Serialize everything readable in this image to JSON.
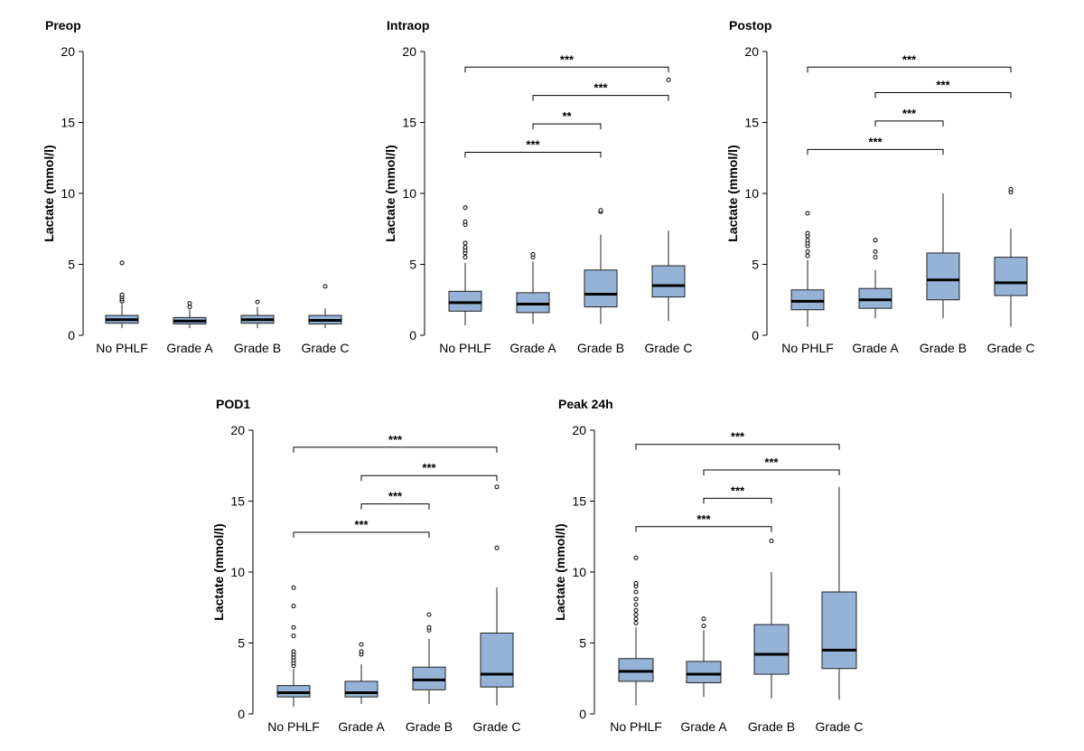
{
  "figure": {
    "y_axis_label": "Lactate (mmol/l)",
    "categories": [
      "No PHLF",
      "Grade A",
      "Grade B",
      "Grade C"
    ],
    "box_fill": "#95b3d7",
    "box_stroke": "#222222"
  },
  "chart_data": [
    {
      "type": "box",
      "title": "Preop",
      "ylabel": "Lactate (mmol/l)",
      "ylim": [
        0,
        20
      ],
      "yticks": [
        "0",
        "5",
        "10",
        "15",
        "20"
      ],
      "categories": [
        "No PHLF",
        "Grade A",
        "Grade B",
        "Grade C"
      ],
      "boxes": [
        {
          "min": 0.5,
          "q1": 0.85,
          "median": 1.1,
          "q3": 1.4,
          "max": 2.2,
          "outliers": [
            2.4,
            2.55,
            2.7,
            2.85,
            5.1
          ]
        },
        {
          "min": 0.5,
          "q1": 0.8,
          "median": 1.0,
          "q3": 1.25,
          "max": 1.8,
          "outliers": [
            2.0,
            2.25
          ]
        },
        {
          "min": 0.5,
          "q1": 0.85,
          "median": 1.1,
          "q3": 1.4,
          "max": 2.0,
          "outliers": [
            2.35
          ]
        },
        {
          "min": 0.5,
          "q1": 0.8,
          "median": 1.05,
          "q3": 1.4,
          "max": 1.9,
          "outliers": [
            3.45
          ]
        }
      ],
      "brackets": []
    },
    {
      "type": "box",
      "title": "Intraop",
      "ylabel": "Lactate (mmol/l)",
      "ylim": [
        0,
        20
      ],
      "yticks": [
        "0",
        "5",
        "10",
        "15",
        "20"
      ],
      "categories": [
        "No PHLF",
        "Grade A",
        "Grade B",
        "Grade C"
      ],
      "boxes": [
        {
          "min": 0.7,
          "q1": 1.7,
          "median": 2.3,
          "q3": 3.1,
          "max": 5.1,
          "outliers": [
            5.5,
            5.8,
            6.0,
            6.2,
            6.5,
            7.8,
            8.0,
            9.0
          ]
        },
        {
          "min": 0.8,
          "q1": 1.6,
          "median": 2.2,
          "q3": 3.0,
          "max": 5.2,
          "outliers": [
            5.5,
            5.7
          ]
        },
        {
          "min": 0.8,
          "q1": 2.0,
          "median": 2.9,
          "q3": 4.6,
          "max": 7.1,
          "outliers": [
            8.7,
            8.8
          ]
        },
        {
          "min": 1.0,
          "q1": 2.7,
          "median": 3.5,
          "q3": 4.9,
          "max": 7.4,
          "outliers": [
            18.0
          ]
        }
      ],
      "brackets": [
        {
          "from": 0,
          "to": 3,
          "y": 18.9,
          "label": "***"
        },
        {
          "from": 1,
          "to": 3,
          "y": 16.9,
          "label": "***"
        },
        {
          "from": 1,
          "to": 2,
          "y": 14.9,
          "label": "**"
        },
        {
          "from": 0,
          "to": 2,
          "y": 12.9,
          "label": "***"
        }
      ]
    },
    {
      "type": "box",
      "title": "Postop",
      "ylabel": "Lactate (mmol/l)",
      "ylim": [
        0,
        20
      ],
      "yticks": [
        "0",
        "5",
        "10",
        "15",
        "20"
      ],
      "categories": [
        "No PHLF",
        "Grade A",
        "Grade B",
        "Grade C"
      ],
      "boxes": [
        {
          "min": 0.6,
          "q1": 1.8,
          "median": 2.4,
          "q3": 3.2,
          "max": 5.3,
          "outliers": [
            5.6,
            5.9,
            6.3,
            6.5,
            6.7,
            7.0,
            7.2,
            8.6
          ]
        },
        {
          "min": 1.2,
          "q1": 1.9,
          "median": 2.5,
          "q3": 3.3,
          "max": 4.6,
          "outliers": [
            5.5,
            5.9,
            6.7
          ]
        },
        {
          "min": 1.2,
          "q1": 2.5,
          "median": 3.9,
          "q3": 5.8,
          "max": 10.0,
          "outliers": []
        },
        {
          "min": 0.6,
          "q1": 2.8,
          "median": 3.7,
          "q3": 5.5,
          "max": 7.5,
          "outliers": [
            10.1,
            10.3
          ]
        }
      ],
      "brackets": [
        {
          "from": 0,
          "to": 3,
          "y": 18.9,
          "label": "***"
        },
        {
          "from": 1,
          "to": 3,
          "y": 17.1,
          "label": "***"
        },
        {
          "from": 1,
          "to": 2,
          "y": 15.1,
          "label": "***"
        },
        {
          "from": 0,
          "to": 2,
          "y": 13.1,
          "label": "***"
        }
      ]
    },
    {
      "type": "box",
      "title": "POD1",
      "ylabel": "Lactate (mmol/l)",
      "ylim": [
        0,
        20
      ],
      "yticks": [
        "0",
        "5",
        "10",
        "15",
        "20"
      ],
      "categories": [
        "No PHLF",
        "Grade A",
        "Grade B",
        "Grade C"
      ],
      "boxes": [
        {
          "min": 0.5,
          "q1": 1.2,
          "median": 1.5,
          "q3": 2.0,
          "max": 3.2,
          "outliers": [
            3.4,
            3.6,
            3.8,
            4.0,
            4.2,
            4.4,
            5.5,
            6.1,
            7.6,
            8.9
          ]
        },
        {
          "min": 0.7,
          "q1": 1.2,
          "median": 1.5,
          "q3": 2.3,
          "max": 3.5,
          "outliers": [
            4.2,
            4.4,
            4.9
          ]
        },
        {
          "min": 0.7,
          "q1": 1.7,
          "median": 2.4,
          "q3": 3.3,
          "max": 5.3,
          "outliers": [
            5.9,
            6.1,
            7.0
          ]
        },
        {
          "min": 0.6,
          "q1": 1.9,
          "median": 2.8,
          "q3": 5.7,
          "max": 8.9,
          "outliers": [
            11.7,
            16.0
          ]
        }
      ],
      "brackets": [
        {
          "from": 0,
          "to": 3,
          "y": 18.8,
          "label": "***"
        },
        {
          "from": 1,
          "to": 3,
          "y": 16.8,
          "label": "***"
        },
        {
          "from": 1,
          "to": 2,
          "y": 14.8,
          "label": "***"
        },
        {
          "from": 0,
          "to": 2,
          "y": 12.8,
          "label": "***"
        }
      ]
    },
    {
      "type": "box",
      "title": "Peak 24h",
      "ylabel": "Lactate (mmol/l)",
      "ylim": [
        0,
        20
      ],
      "yticks": [
        "0",
        "5",
        "10",
        "15",
        "20"
      ],
      "categories": [
        "No PHLF",
        "Grade A",
        "Grade B",
        "Grade C"
      ],
      "boxes": [
        {
          "min": 0.6,
          "q1": 2.3,
          "median": 3.0,
          "q3": 3.9,
          "max": 6.1,
          "outliers": [
            6.4,
            6.7,
            7.0,
            7.3,
            7.7,
            8.1,
            8.6,
            9.0,
            9.2,
            11.0
          ]
        },
        {
          "min": 1.2,
          "q1": 2.2,
          "median": 2.8,
          "q3": 3.7,
          "max": 5.9,
          "outliers": [
            6.2,
            6.7
          ]
        },
        {
          "min": 1.1,
          "q1": 2.8,
          "median": 4.2,
          "q3": 6.3,
          "max": 10.0,
          "outliers": [
            12.2
          ]
        },
        {
          "min": 1.0,
          "q1": 3.2,
          "median": 4.5,
          "q3": 8.6,
          "max": 16.0,
          "outliers": []
        }
      ],
      "brackets": [
        {
          "from": 0,
          "to": 3,
          "y": 19.0,
          "label": "***"
        },
        {
          "from": 1,
          "to": 3,
          "y": 17.2,
          "label": "***"
        },
        {
          "from": 1,
          "to": 2,
          "y": 15.2,
          "label": "***"
        },
        {
          "from": 0,
          "to": 2,
          "y": 13.2,
          "label": "***"
        }
      ]
    }
  ]
}
